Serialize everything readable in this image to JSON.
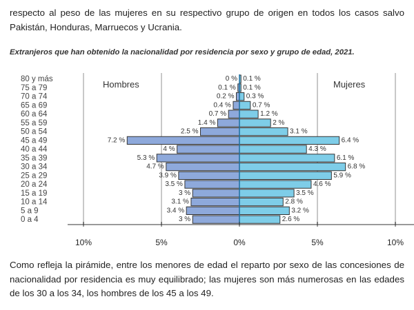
{
  "intro_text": "respecto al peso de las mujeres en su respectivo grupo de origen en todos los casos salvo Pakistán, Honduras, Marruecos y Ucrania.",
  "caption": "Extranjeros que han obtenido la nacionalidad por residencia por sexo y grupo de edad, 2021.",
  "outro_text": "Como refleja la pirámide, entre los menores de edad el reparto por sexo de las concesiones de nacionalidad por residencia es muy equilibrado; las mujeres son más numerosas en las edades de los 30 a los 34, los hombres de los 45 a los 49.",
  "chart_data": {
    "type": "bar",
    "orientation": "horizontal-population-pyramid",
    "categories": [
      "80 y más",
      "75 a 79",
      "70 a 74",
      "65 a 69",
      "60 a 64",
      "55 a 59",
      "50 a 54",
      "45 a 49",
      "40 a 44",
      "35 a 39",
      "30 a 34",
      "25 a 29",
      "20 a 24",
      "15 a 19",
      "10 a 14",
      "5 a 9",
      "0 a 4"
    ],
    "series": [
      {
        "name": "Hombres",
        "side": "left",
        "color": "#8ea9db",
        "values": [
          0,
          0.1,
          0.2,
          0.4,
          0.7,
          1.4,
          2.5,
          7.2,
          4,
          5.3,
          4.7,
          3.9,
          3.5,
          3,
          3.1,
          3.4,
          3
        ],
        "labels": [
          "0 %",
          "0.1 %",
          "0.2 %",
          "0.4 %",
          "0.7 %",
          "1.4 %",
          "2.5 %",
          "7.2 %",
          "4 %",
          "5.3 %",
          "4.7 %",
          "3.9 %",
          "3.5 %",
          "3 %",
          "3.1 %",
          "3.4 %",
          "3 %"
        ]
      },
      {
        "name": "Mujeres",
        "side": "right",
        "color": "#7ecde8",
        "values": [
          0.1,
          0.1,
          0.3,
          0.7,
          1.2,
          2,
          3.1,
          6.4,
          4.3,
          6.1,
          6.8,
          5.9,
          4.6,
          3.5,
          2.8,
          3.2,
          2.6
        ],
        "labels": [
          "0.1 %",
          "0.1 %",
          "0.3 %",
          "0.7 %",
          "1.2 %",
          "2 %",
          "3.1 %",
          "6.4 %",
          "4.3 %",
          "6.1 %",
          "6.8 %",
          "5.9 %",
          "4.6 %",
          "3.5 %",
          "2.8 %",
          "3.2 %",
          "2.6 %"
        ]
      }
    ],
    "x_ticks": [
      "10%",
      "5%",
      "0%",
      "5%",
      "10%"
    ],
    "xlim": [
      -10,
      10
    ],
    "grid": true
  }
}
